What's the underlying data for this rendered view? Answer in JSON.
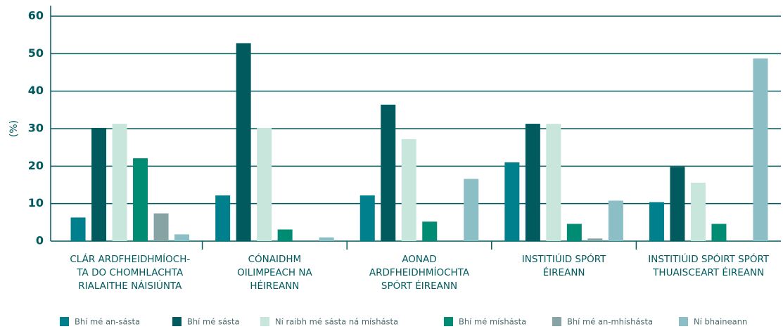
{
  "chart_data": {
    "type": "bar",
    "ylabel": "(%)",
    "categories": [
      [
        "CLÁR ARDFHEIDHMÍOCH-",
        "TA DO CHOMHLACHTA",
        "RIALAITHE NÁISIÚNTA"
      ],
      [
        "CÓNAIDHM",
        "OILIMPEACH NA",
        "HÉIREANN"
      ],
      [
        "AONAD",
        "ARDFHEIDHMÍOCHTA",
        "SPÓRT ÉIREANN"
      ],
      [
        "INSTITIÚID SPÓRT",
        "ÉIREANN"
      ],
      [
        "INSTITIÚID SPÓIRT SPÓRT",
        "THUAISCEART ÉIREANN"
      ]
    ],
    "series": [
      {
        "name": "Bhí mé an-sásta",
        "color": "#007f8c",
        "values": [
          6.3,
          12.2,
          12.2,
          21.0,
          10.4
        ]
      },
      {
        "name": "Bhí mé sásta",
        "color": "#005a5e",
        "values": [
          30.2,
          52.8,
          36.4,
          31.3,
          19.8
        ]
      },
      {
        "name": "Ní raibh mé sásta ná míshásta",
        "color": "#c8e6dc",
        "values": [
          31.3,
          30.2,
          27.2,
          31.3,
          15.6
        ]
      },
      {
        "name": "Bhí mé míshásta",
        "color": "#008c72",
        "values": [
          22.1,
          3.1,
          5.2,
          4.6,
          4.6
        ]
      },
      {
        "name": "Bhí mé an-mhíshásta",
        "color": "#87a3a3",
        "values": [
          7.4,
          null,
          null,
          0.7,
          null
        ]
      },
      {
        "name": "Ní bhaineann",
        "color": "#8cbec6",
        "values": [
          1.8,
          1.0,
          16.6,
          10.8,
          48.7
        ]
      }
    ],
    "ylim": [
      0,
      60
    ],
    "yticks": [
      0,
      10,
      20,
      30,
      40,
      50,
      60
    ],
    "grid": true,
    "legend": "bottom"
  }
}
